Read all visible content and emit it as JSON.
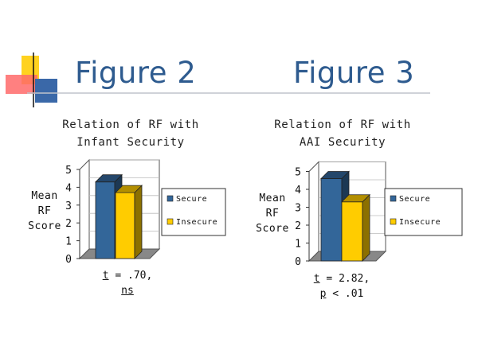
{
  "headings": {
    "left": "Figure 2",
    "right": "Figure 3"
  },
  "colors": {
    "secure": "#336699",
    "insecure": "#ffcc00",
    "title": "#2e5b8f"
  },
  "chart_data": [
    {
      "type": "bar",
      "title": "Relation of RF with Infant Security",
      "title_lines": [
        "Relation of RF with",
        "Infant Security"
      ],
      "ylabel_lines": [
        "Mean",
        "RF",
        "Score"
      ],
      "categories": [
        ""
      ],
      "series": [
        {
          "name": "Secure",
          "values": [
            4.3
          ]
        },
        {
          "name": "Insecure",
          "values": [
            3.7
          ]
        }
      ],
      "ylim": [
        0,
        5
      ],
      "yticks": [
        "0",
        "1",
        "2",
        "3",
        "4",
        "5"
      ],
      "legend": "right",
      "annotation": {
        "t_label": "t",
        "t_value": " = .70,",
        "sig": "ns",
        "sig_rest": ""
      }
    },
    {
      "type": "bar",
      "title": "Relation of RF with AAI Security",
      "title_lines": [
        "Relation of RF with",
        "AAI Security"
      ],
      "ylabel_lines": [
        "Mean",
        "RF",
        "Score"
      ],
      "categories": [
        ""
      ],
      "series": [
        {
          "name": "Secure",
          "values": [
            4.6
          ]
        },
        {
          "name": "Insecure",
          "values": [
            3.3
          ]
        }
      ],
      "ylim": [
        0,
        5
      ],
      "yticks": [
        "0",
        "1",
        "2",
        "3",
        "4",
        "5"
      ],
      "legend": "right",
      "annotation": {
        "t_label": "t",
        "t_value": " = 2.82,",
        "sig": "p",
        "sig_rest": " < .01"
      }
    }
  ]
}
